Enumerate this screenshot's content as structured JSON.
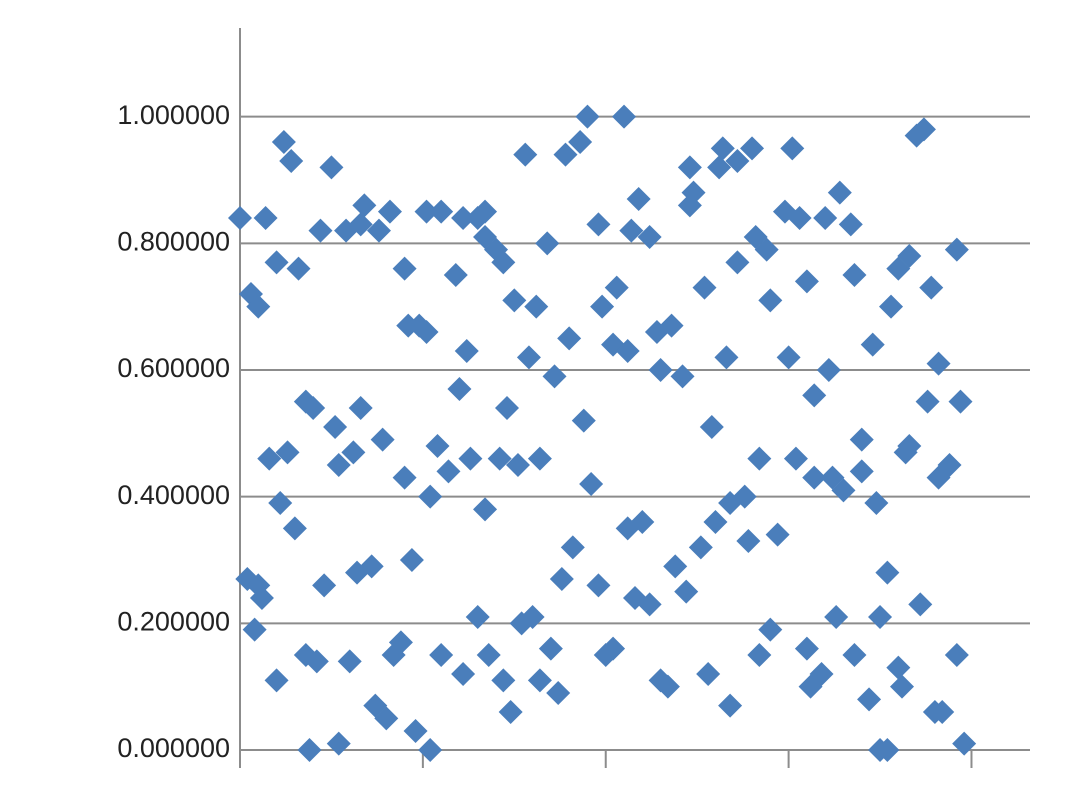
{
  "chart_data": {
    "type": "scatter",
    "color": "#4a7ebb",
    "marker": "diamond",
    "grid": true,
    "xlim": [
      0,
      216
    ],
    "xticks": [
      0,
      50,
      100,
      150,
      200
    ],
    "ylim": [
      0,
      1.14
    ],
    "yticks": [
      {
        "value": 0,
        "label": "0.000000"
      },
      {
        "value": 0.2,
        "label": "0.200000"
      },
      {
        "value": 0.4,
        "label": "0.400000"
      },
      {
        "value": 0.6,
        "label": "0.600000"
      },
      {
        "value": 0.8,
        "label": "0.800000"
      },
      {
        "value": 1.0,
        "label": "1.000000"
      }
    ],
    "x": [
      0,
      3,
      5,
      7,
      2,
      5,
      6,
      4,
      10,
      8,
      10,
      12,
      14,
      11,
      13,
      15,
      16,
      18,
      18,
      19,
      20,
      21,
      22,
      23,
      25,
      26,
      27,
      27,
      29,
      30,
      31,
      32,
      33,
      34,
      33,
      36,
      37,
      38,
      39,
      40,
      41,
      42,
      44,
      45,
      45,
      46,
      47,
      48,
      49,
      51,
      51,
      52,
      52,
      54,
      55,
      55,
      57,
      59,
      60,
      61,
      61,
      62,
      63,
      65,
      67,
      67,
      65,
      67,
      68,
      70,
      71,
      72,
      72,
      73,
      74,
      75,
      76,
      77,
      78,
      79,
      80,
      81,
      82,
      82,
      84,
      85,
      86,
      87,
      88,
      89,
      90,
      91,
      93,
      94,
      95,
      96,
      98,
      98,
      99,
      100,
      102,
      102,
      103,
      105,
      106,
      106,
      107,
      108,
      109,
      110,
      112,
      112,
      114,
      115,
      115,
      117,
      118,
      119,
      121,
      122,
      123,
      123,
      124,
      126,
      127,
      128,
      129,
      130,
      131,
      132,
      133,
      134,
      134,
      136,
      136,
      138,
      139,
      140,
      141,
      142,
      142,
      144,
      145,
      145,
      147,
      149,
      150,
      151,
      152,
      155,
      153,
      155,
      156,
      157,
      157,
      159,
      160,
      161,
      162,
      163,
      164,
      165,
      167,
      168,
      168,
      170,
      170,
      172,
      173,
      174,
      175,
      175,
      177,
      177,
      178,
      180,
      180,
      181,
      182,
      183,
      183,
      185,
      186,
      187,
      188,
      189,
      190,
      191,
      191,
      192,
      194,
      196,
      196,
      197,
      198
    ],
    "values": [
      0.84,
      0.72,
      0.7,
      0.84,
      0.27,
      0.26,
      0.24,
      0.19,
      0.11,
      0.46,
      0.77,
      0.96,
      0.93,
      0.39,
      0.47,
      0.35,
      0.76,
      0.55,
      0.15,
      0.0,
      0.54,
      0.14,
      0.82,
      0.26,
      0.92,
      0.51,
      0.01,
      0.45,
      0.82,
      0.14,
      0.47,
      0.28,
      0.83,
      0.86,
      0.54,
      0.29,
      0.07,
      0.82,
      0.49,
      0.05,
      0.85,
      0.15,
      0.17,
      0.76,
      0.43,
      0.67,
      0.3,
      0.03,
      0.67,
      0.85,
      0.66,
      0.4,
      0.0,
      0.48,
      0.85,
      0.15,
      0.44,
      0.75,
      0.57,
      0.12,
      0.84,
      0.63,
      0.46,
      0.84,
      0.85,
      0.38,
      0.21,
      0.81,
      0.15,
      0.79,
      0.46,
      0.11,
      0.77,
      0.54,
      0.06,
      0.71,
      0.45,
      0.2,
      0.94,
      0.62,
      0.21,
      0.7,
      0.11,
      0.46,
      0.8,
      0.16,
      0.59,
      0.09,
      0.27,
      0.94,
      0.65,
      0.32,
      0.96,
      0.52,
      1.0,
      0.42,
      0.83,
      0.26,
      0.7,
      0.15,
      0.16,
      0.64,
      0.73,
      1.0,
      0.63,
      0.35,
      0.82,
      0.24,
      0.87,
      0.36,
      0.81,
      0.23,
      0.66,
      0.6,
      0.11,
      0.1,
      0.67,
      0.29,
      0.59,
      0.25,
      0.86,
      0.92,
      0.88,
      0.32,
      0.73,
      0.12,
      0.51,
      0.36,
      0.92,
      0.95,
      0.62,
      0.39,
      0.07,
      0.93,
      0.77,
      0.4,
      0.33,
      0.95,
      0.81,
      0.15,
      0.46,
      0.79,
      0.19,
      0.71,
      0.34,
      0.85,
      0.62,
      0.95,
      0.46,
      0.74,
      0.84,
      0.16,
      0.1,
      0.43,
      0.56,
      0.12,
      0.84,
      0.6,
      0.43,
      0.21,
      0.88,
      0.41,
      0.83,
      0.15,
      0.75,
      0.44,
      0.49,
      0.08,
      0.64,
      0.39,
      0.21,
      0.0,
      0.0,
      0.28,
      0.7,
      0.76,
      0.13,
      0.1,
      0.47,
      0.78,
      0.48,
      0.97,
      0.23,
      0.98,
      0.55,
      0.73,
      0.06,
      0.43,
      0.61,
      0.06,
      0.45,
      0.79,
      0.15,
      0.55,
      0.01
    ]
  }
}
